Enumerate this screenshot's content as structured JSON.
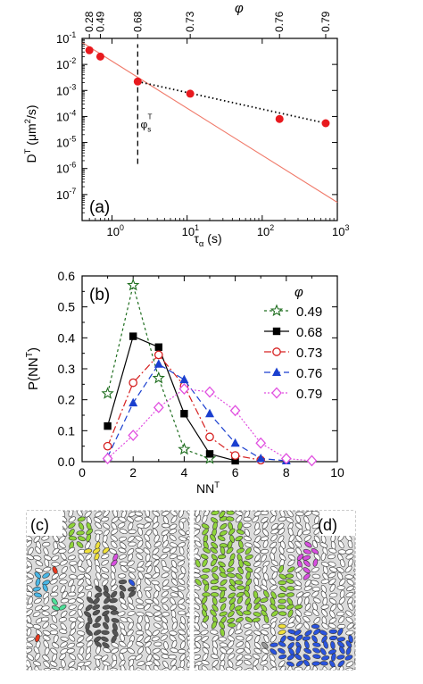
{
  "chart_data": [
    {
      "type": "scatter",
      "panel_label": "(a)",
      "x_scale": "log",
      "y_scale": "log",
      "xlabel_base": "τ",
      "xlabel_sub": "α",
      "xlabel_unit": " (s)",
      "ylabel_base": "D",
      "ylabel_sup": "T",
      "ylabel_unit_open": " (μm",
      "ylabel_unit_sup": "2",
      "ylabel_unit_close": "/s)",
      "xlim": [
        0.4,
        1000
      ],
      "ylim": [
        1e-08,
        0.1
      ],
      "x_ticks": [
        {
          "value": 1,
          "base": "10",
          "exp": "0"
        },
        {
          "value": 10,
          "base": "10",
          "exp": "1"
        },
        {
          "value": 100,
          "base": "10",
          "exp": "2"
        },
        {
          "value": 1000,
          "base": "10",
          "exp": "3"
        }
      ],
      "y_ticks": [
        {
          "value": 0.1,
          "base": "10",
          "exp": "-1"
        },
        {
          "value": 0.01,
          "base": "10",
          "exp": "-2"
        },
        {
          "value": 0.001,
          "base": "10",
          "exp": "-3"
        },
        {
          "value": 0.0001,
          "base": "10",
          "exp": "-4"
        },
        {
          "value": 1e-05,
          "base": "10",
          "exp": "-5"
        },
        {
          "value": 1e-06,
          "base": "10",
          "exp": "-6"
        },
        {
          "value": 1e-07,
          "base": "10",
          "exp": "-7"
        }
      ],
      "top_axis_label": "φ",
      "top_ticks": [
        {
          "x": 0.5,
          "label": "0.28"
        },
        {
          "x": 0.7,
          "label": "0.49"
        },
        {
          "x": 2.2,
          "label": "0.68"
        },
        {
          "x": 11,
          "label": "0.73"
        },
        {
          "x": 170,
          "label": "0.76"
        },
        {
          "x": 700,
          "label": "0.79"
        }
      ],
      "points": [
        {
          "x": 0.5,
          "y": 0.035
        },
        {
          "x": 0.7,
          "y": 0.02
        },
        {
          "x": 2.2,
          "y": 0.0022
        },
        {
          "x": 11,
          "y": 0.00075
        },
        {
          "x": 170,
          "y": 8e-05
        },
        {
          "x": 700,
          "y": 5.5e-05
        }
      ],
      "point_color": "#e8191e",
      "fit_line": {
        "x": [
          0.4,
          1000
        ],
        "y": [
          0.07,
          5e-08
        ],
        "color": "#f07a6a"
      },
      "dotted_line": {
        "x": [
          2.2,
          700
        ],
        "y": [
          0.0022,
          5.5e-05
        ],
        "color": "#000000"
      },
      "threshold": {
        "x": 2.2,
        "y_range": [
          1.5e-06,
          0.06
        ],
        "label_base": "φ",
        "label_sub": "s",
        "label_sup": "T",
        "label_x": 2.4,
        "label_y": 3.5e-05
      }
    },
    {
      "type": "line",
      "panel_label": "(b)",
      "xlabel_base": "NN",
      "xlabel_sup": "T",
      "ylabel_base": "P(NN",
      "ylabel_sup": "T",
      "ylabel_close": ")",
      "xlim": [
        0,
        10
      ],
      "ylim": [
        0,
        0.6
      ],
      "x_ticks": [
        "0",
        "2",
        "4",
        "6",
        "8",
        "10"
      ],
      "y_ticks": [
        "0.0",
        "0.1",
        "0.2",
        "0.3",
        "0.4",
        "0.5",
        "0.6"
      ],
      "legend_title": "φ",
      "legend_position": "right",
      "series": [
        {
          "name": "0.49",
          "color": "#1f6e1f",
          "marker": "star-open",
          "dash": "3,3",
          "x": [
            1,
            2,
            3,
            4,
            5
          ],
          "values": [
            0.22,
            0.57,
            0.27,
            0.04,
            0.01
          ]
        },
        {
          "name": "0.68",
          "color": "#000000",
          "marker": "square-filled",
          "dash": "",
          "x": [
            1,
            2,
            3,
            4,
            5,
            6
          ],
          "values": [
            0.115,
            0.405,
            0.37,
            0.155,
            0.025,
            0.003
          ]
        },
        {
          "name": "0.73",
          "color": "#d62020",
          "marker": "circle-open",
          "dash": "8,3,2,3",
          "x": [
            1,
            2,
            3,
            4,
            5,
            6,
            7
          ],
          "values": [
            0.05,
            0.255,
            0.345,
            0.245,
            0.08,
            0.02,
            0.005
          ]
        },
        {
          "name": "0.76",
          "color": "#1a3fcf",
          "marker": "triangle-filled",
          "dash": "7,4",
          "x": [
            1,
            2,
            3,
            4,
            5,
            6,
            7,
            8
          ],
          "values": [
            0.015,
            0.19,
            0.315,
            0.265,
            0.155,
            0.06,
            0.01,
            0.003
          ]
        },
        {
          "name": "0.79",
          "color": "#e14fe0",
          "marker": "diamond-open",
          "dash": "2,2",
          "x": [
            1,
            2,
            3,
            4,
            5,
            6,
            7,
            8,
            9
          ],
          "values": [
            0.01,
            0.085,
            0.175,
            0.235,
            0.225,
            0.165,
            0.06,
            0.01,
            0.003
          ]
        }
      ]
    }
  ],
  "images": [
    {
      "panel_label": "(c)",
      "description": "ellipse-packing"
    },
    {
      "panel_label": "(d)",
      "description": "ellipse-packing"
    }
  ]
}
